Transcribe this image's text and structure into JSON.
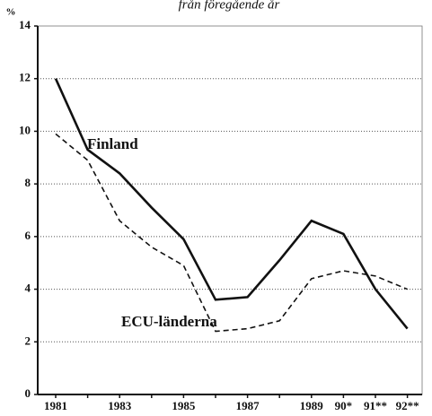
{
  "chart_data": {
    "type": "line",
    "subtitle": "från föregående år",
    "y_label": "%",
    "categories": [
      "1981",
      null,
      "1983",
      null,
      "1985",
      null,
      "1987",
      null,
      "1989",
      "90*",
      "91**",
      "92**"
    ],
    "series": [
      {
        "name": "Finland",
        "color": "#111111",
        "line_style": "solid",
        "values": [
          12.0,
          9.3,
          8.4,
          7.1,
          5.9,
          3.6,
          3.7,
          5.1,
          6.6,
          6.1,
          4.0,
          2.5
        ]
      },
      {
        "name": "ECU-länderna",
        "color": "#111111",
        "line_style": "dashed",
        "values": [
          9.9,
          8.9,
          6.6,
          5.6,
          4.9,
          2.4,
          2.5,
          2.8,
          4.4,
          4.7,
          4.5,
          4.0
        ]
      }
    ],
    "ylim": [
      0,
      14
    ],
    "yticks": [
      0,
      2,
      4,
      6,
      8,
      10,
      12,
      14
    ],
    "grid": true
  }
}
